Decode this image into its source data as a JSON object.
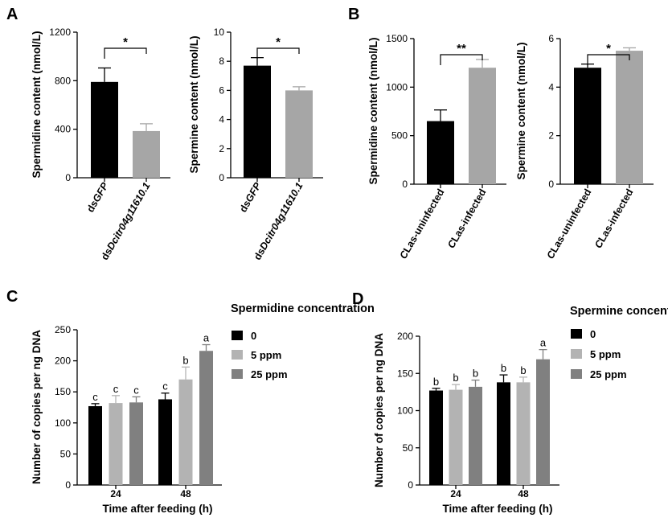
{
  "colors": {
    "black": "#000000",
    "gray": "#a6a6a6",
    "midgray": "#7f7f7f",
    "lightgray": "#b3b3b3",
    "darkgray": "#808080"
  },
  "panel_labels": [
    "A",
    "B",
    "C",
    "D"
  ],
  "chart_data": [
    {
      "id": "A1",
      "panel": "A",
      "type": "bar",
      "ylabel": "Spermidine content (nmol/L)",
      "categories": [
        {
          "parts": [
            {
              "text": "ds",
              "italic": false
            },
            {
              "text": "GFP",
              "italic": true
            }
          ]
        },
        {
          "parts": [
            {
              "text": "ds",
              "italic": false
            },
            {
              "text": "Dcitr04g11610.1",
              "italic": true
            }
          ]
        }
      ],
      "values": [
        790,
        385
      ],
      "errors": [
        115,
        60
      ],
      "colors": [
        "#000000",
        "#a6a6a6"
      ],
      "ylim": [
        0,
        1200
      ],
      "yticks": [
        0,
        400,
        800,
        1200
      ],
      "significance": "*"
    },
    {
      "id": "A2",
      "panel": "A",
      "type": "bar",
      "ylabel": "Spermine content (nmol/L)",
      "categories": [
        {
          "parts": [
            {
              "text": "ds",
              "italic": false
            },
            {
              "text": "GFP",
              "italic": true
            }
          ]
        },
        {
          "parts": [
            {
              "text": "ds",
              "italic": false
            },
            {
              "text": "Dcitr04g11610.1",
              "italic": true
            }
          ]
        }
      ],
      "values": [
        7.7,
        6.0
      ],
      "errors": [
        0.55,
        0.25
      ],
      "colors": [
        "#000000",
        "#a6a6a6"
      ],
      "ylim": [
        0,
        10
      ],
      "yticks": [
        0,
        2,
        4,
        6,
        8,
        10
      ],
      "significance": "*"
    },
    {
      "id": "B1",
      "panel": "B",
      "type": "bar",
      "ylabel": "Spermidine content (nmol/L)",
      "categories": [
        {
          "parts": [
            {
              "text": "C",
              "italic": true
            },
            {
              "text": "Las-uninfected",
              "italic": false
            }
          ]
        },
        {
          "parts": [
            {
              "text": "C",
              "italic": true
            },
            {
              "text": "Las-infected",
              "italic": false
            }
          ]
        }
      ],
      "values": [
        650,
        1200
      ],
      "errors": [
        115,
        85
      ],
      "colors": [
        "#000000",
        "#a6a6a6"
      ],
      "ylim": [
        0,
        1500
      ],
      "yticks": [
        0,
        500,
        1000,
        1500
      ],
      "significance": "**"
    },
    {
      "id": "B2",
      "panel": "B",
      "type": "bar",
      "ylabel": "Spermine content (nmol/L)",
      "categories": [
        {
          "parts": [
            {
              "text": "C",
              "italic": true
            },
            {
              "text": "Las-uninfected",
              "italic": false
            }
          ]
        },
        {
          "parts": [
            {
              "text": "C",
              "italic": true
            },
            {
              "text": "Las-infected",
              "italic": false
            }
          ]
        }
      ],
      "values": [
        4.8,
        5.5
      ],
      "errors": [
        0.15,
        0.12
      ],
      "colors": [
        "#000000",
        "#a6a6a6"
      ],
      "ylim": [
        0,
        6
      ],
      "yticks": [
        0,
        2,
        4,
        6
      ],
      "significance": "*"
    },
    {
      "id": "C",
      "panel": "C",
      "type": "bar",
      "title": "Spermidine concentration",
      "ylabel": "Number of copies per ng DNA",
      "xlabel": "Time after feeding (h)",
      "categories": [
        "24",
        "48"
      ],
      "series": [
        {
          "name": "0",
          "color": "#000000",
          "values": [
            127,
            138
          ],
          "errors": [
            4,
            10
          ],
          "letters": [
            "c",
            "c"
          ]
        },
        {
          "name": "5 ppm",
          "color": "#b3b3b3",
          "values": [
            132,
            170
          ],
          "errors": [
            12,
            20
          ],
          "letters": [
            "c",
            "b"
          ]
        },
        {
          "name": "25 ppm",
          "color": "#808080",
          "values": [
            133,
            216
          ],
          "errors": [
            9,
            10
          ],
          "letters": [
            "c",
            "a"
          ]
        }
      ],
      "ylim": [
        0,
        250
      ],
      "yticks": [
        0,
        50,
        100,
        150,
        200,
        250
      ]
    },
    {
      "id": "D",
      "panel": "D",
      "type": "bar",
      "title": "Spermine concentration",
      "ylabel": "Number of copies per ng DNA",
      "xlabel": "Time after feeding (h)",
      "categories": [
        "24",
        "48"
      ],
      "series": [
        {
          "name": "0",
          "color": "#000000",
          "values": [
            127,
            138
          ],
          "errors": [
            3,
            10
          ],
          "letters": [
            "b",
            "b"
          ]
        },
        {
          "name": "5 ppm",
          "color": "#b3b3b3",
          "values": [
            128,
            138
          ],
          "errors": [
            7,
            7
          ],
          "letters": [
            "b",
            "b"
          ]
        },
        {
          "name": "25 ppm",
          "color": "#808080",
          "values": [
            132,
            169
          ],
          "errors": [
            9,
            13
          ],
          "letters": [
            "b",
            "a"
          ]
        }
      ],
      "ylim": [
        0,
        200
      ],
      "yticks": [
        0,
        50,
        100,
        150,
        200
      ]
    }
  ]
}
